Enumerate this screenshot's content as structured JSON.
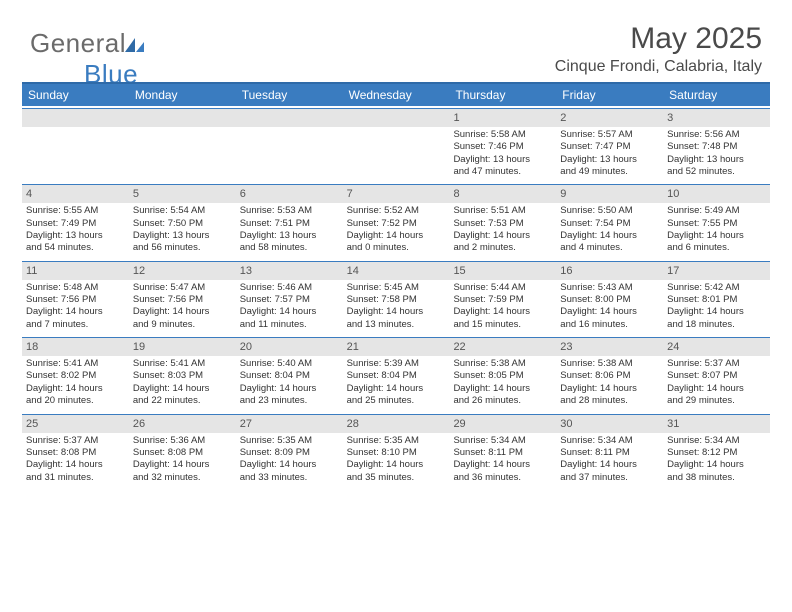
{
  "brand": {
    "word1": "General",
    "word2": "Blue"
  },
  "title": "May 2025",
  "location": "Cinque Frondi, Calabria, Italy",
  "colors": {
    "header_bg": "#3a7cc0",
    "header_border": "#2e6aa8",
    "daynum_bg": "#e5e5e5",
    "daynum_border": "#3a7cc0",
    "text": "#333333",
    "title_text": "#4a4a4a",
    "logo_gray": "#6b6b6b"
  },
  "day_headers": [
    "Sunday",
    "Monday",
    "Tuesday",
    "Wednesday",
    "Thursday",
    "Friday",
    "Saturday"
  ],
  "weeks": [
    [
      {
        "n": "",
        "lines": []
      },
      {
        "n": "",
        "lines": []
      },
      {
        "n": "",
        "lines": []
      },
      {
        "n": "",
        "lines": []
      },
      {
        "n": "1",
        "lines": [
          "Sunrise: 5:58 AM",
          "Sunset: 7:46 PM",
          "Daylight: 13 hours",
          "and 47 minutes."
        ]
      },
      {
        "n": "2",
        "lines": [
          "Sunrise: 5:57 AM",
          "Sunset: 7:47 PM",
          "Daylight: 13 hours",
          "and 49 minutes."
        ]
      },
      {
        "n": "3",
        "lines": [
          "Sunrise: 5:56 AM",
          "Sunset: 7:48 PM",
          "Daylight: 13 hours",
          "and 52 minutes."
        ]
      }
    ],
    [
      {
        "n": "4",
        "lines": [
          "Sunrise: 5:55 AM",
          "Sunset: 7:49 PM",
          "Daylight: 13 hours",
          "and 54 minutes."
        ]
      },
      {
        "n": "5",
        "lines": [
          "Sunrise: 5:54 AM",
          "Sunset: 7:50 PM",
          "Daylight: 13 hours",
          "and 56 minutes."
        ]
      },
      {
        "n": "6",
        "lines": [
          "Sunrise: 5:53 AM",
          "Sunset: 7:51 PM",
          "Daylight: 13 hours",
          "and 58 minutes."
        ]
      },
      {
        "n": "7",
        "lines": [
          "Sunrise: 5:52 AM",
          "Sunset: 7:52 PM",
          "Daylight: 14 hours",
          "and 0 minutes."
        ]
      },
      {
        "n": "8",
        "lines": [
          "Sunrise: 5:51 AM",
          "Sunset: 7:53 PM",
          "Daylight: 14 hours",
          "and 2 minutes."
        ]
      },
      {
        "n": "9",
        "lines": [
          "Sunrise: 5:50 AM",
          "Sunset: 7:54 PM",
          "Daylight: 14 hours",
          "and 4 minutes."
        ]
      },
      {
        "n": "10",
        "lines": [
          "Sunrise: 5:49 AM",
          "Sunset: 7:55 PM",
          "Daylight: 14 hours",
          "and 6 minutes."
        ]
      }
    ],
    [
      {
        "n": "11",
        "lines": [
          "Sunrise: 5:48 AM",
          "Sunset: 7:56 PM",
          "Daylight: 14 hours",
          "and 7 minutes."
        ]
      },
      {
        "n": "12",
        "lines": [
          "Sunrise: 5:47 AM",
          "Sunset: 7:56 PM",
          "Daylight: 14 hours",
          "and 9 minutes."
        ]
      },
      {
        "n": "13",
        "lines": [
          "Sunrise: 5:46 AM",
          "Sunset: 7:57 PM",
          "Daylight: 14 hours",
          "and 11 minutes."
        ]
      },
      {
        "n": "14",
        "lines": [
          "Sunrise: 5:45 AM",
          "Sunset: 7:58 PM",
          "Daylight: 14 hours",
          "and 13 minutes."
        ]
      },
      {
        "n": "15",
        "lines": [
          "Sunrise: 5:44 AM",
          "Sunset: 7:59 PM",
          "Daylight: 14 hours",
          "and 15 minutes."
        ]
      },
      {
        "n": "16",
        "lines": [
          "Sunrise: 5:43 AM",
          "Sunset: 8:00 PM",
          "Daylight: 14 hours",
          "and 16 minutes."
        ]
      },
      {
        "n": "17",
        "lines": [
          "Sunrise: 5:42 AM",
          "Sunset: 8:01 PM",
          "Daylight: 14 hours",
          "and 18 minutes."
        ]
      }
    ],
    [
      {
        "n": "18",
        "lines": [
          "Sunrise: 5:41 AM",
          "Sunset: 8:02 PM",
          "Daylight: 14 hours",
          "and 20 minutes."
        ]
      },
      {
        "n": "19",
        "lines": [
          "Sunrise: 5:41 AM",
          "Sunset: 8:03 PM",
          "Daylight: 14 hours",
          "and 22 minutes."
        ]
      },
      {
        "n": "20",
        "lines": [
          "Sunrise: 5:40 AM",
          "Sunset: 8:04 PM",
          "Daylight: 14 hours",
          "and 23 minutes."
        ]
      },
      {
        "n": "21",
        "lines": [
          "Sunrise: 5:39 AM",
          "Sunset: 8:04 PM",
          "Daylight: 14 hours",
          "and 25 minutes."
        ]
      },
      {
        "n": "22",
        "lines": [
          "Sunrise: 5:38 AM",
          "Sunset: 8:05 PM",
          "Daylight: 14 hours",
          "and 26 minutes."
        ]
      },
      {
        "n": "23",
        "lines": [
          "Sunrise: 5:38 AM",
          "Sunset: 8:06 PM",
          "Daylight: 14 hours",
          "and 28 minutes."
        ]
      },
      {
        "n": "24",
        "lines": [
          "Sunrise: 5:37 AM",
          "Sunset: 8:07 PM",
          "Daylight: 14 hours",
          "and 29 minutes."
        ]
      }
    ],
    [
      {
        "n": "25",
        "lines": [
          "Sunrise: 5:37 AM",
          "Sunset: 8:08 PM",
          "Daylight: 14 hours",
          "and 31 minutes."
        ]
      },
      {
        "n": "26",
        "lines": [
          "Sunrise: 5:36 AM",
          "Sunset: 8:08 PM",
          "Daylight: 14 hours",
          "and 32 minutes."
        ]
      },
      {
        "n": "27",
        "lines": [
          "Sunrise: 5:35 AM",
          "Sunset: 8:09 PM",
          "Daylight: 14 hours",
          "and 33 minutes."
        ]
      },
      {
        "n": "28",
        "lines": [
          "Sunrise: 5:35 AM",
          "Sunset: 8:10 PM",
          "Daylight: 14 hours",
          "and 35 minutes."
        ]
      },
      {
        "n": "29",
        "lines": [
          "Sunrise: 5:34 AM",
          "Sunset: 8:11 PM",
          "Daylight: 14 hours",
          "and 36 minutes."
        ]
      },
      {
        "n": "30",
        "lines": [
          "Sunrise: 5:34 AM",
          "Sunset: 8:11 PM",
          "Daylight: 14 hours",
          "and 37 minutes."
        ]
      },
      {
        "n": "31",
        "lines": [
          "Sunrise: 5:34 AM",
          "Sunset: 8:12 PM",
          "Daylight: 14 hours",
          "and 38 minutes."
        ]
      }
    ]
  ]
}
